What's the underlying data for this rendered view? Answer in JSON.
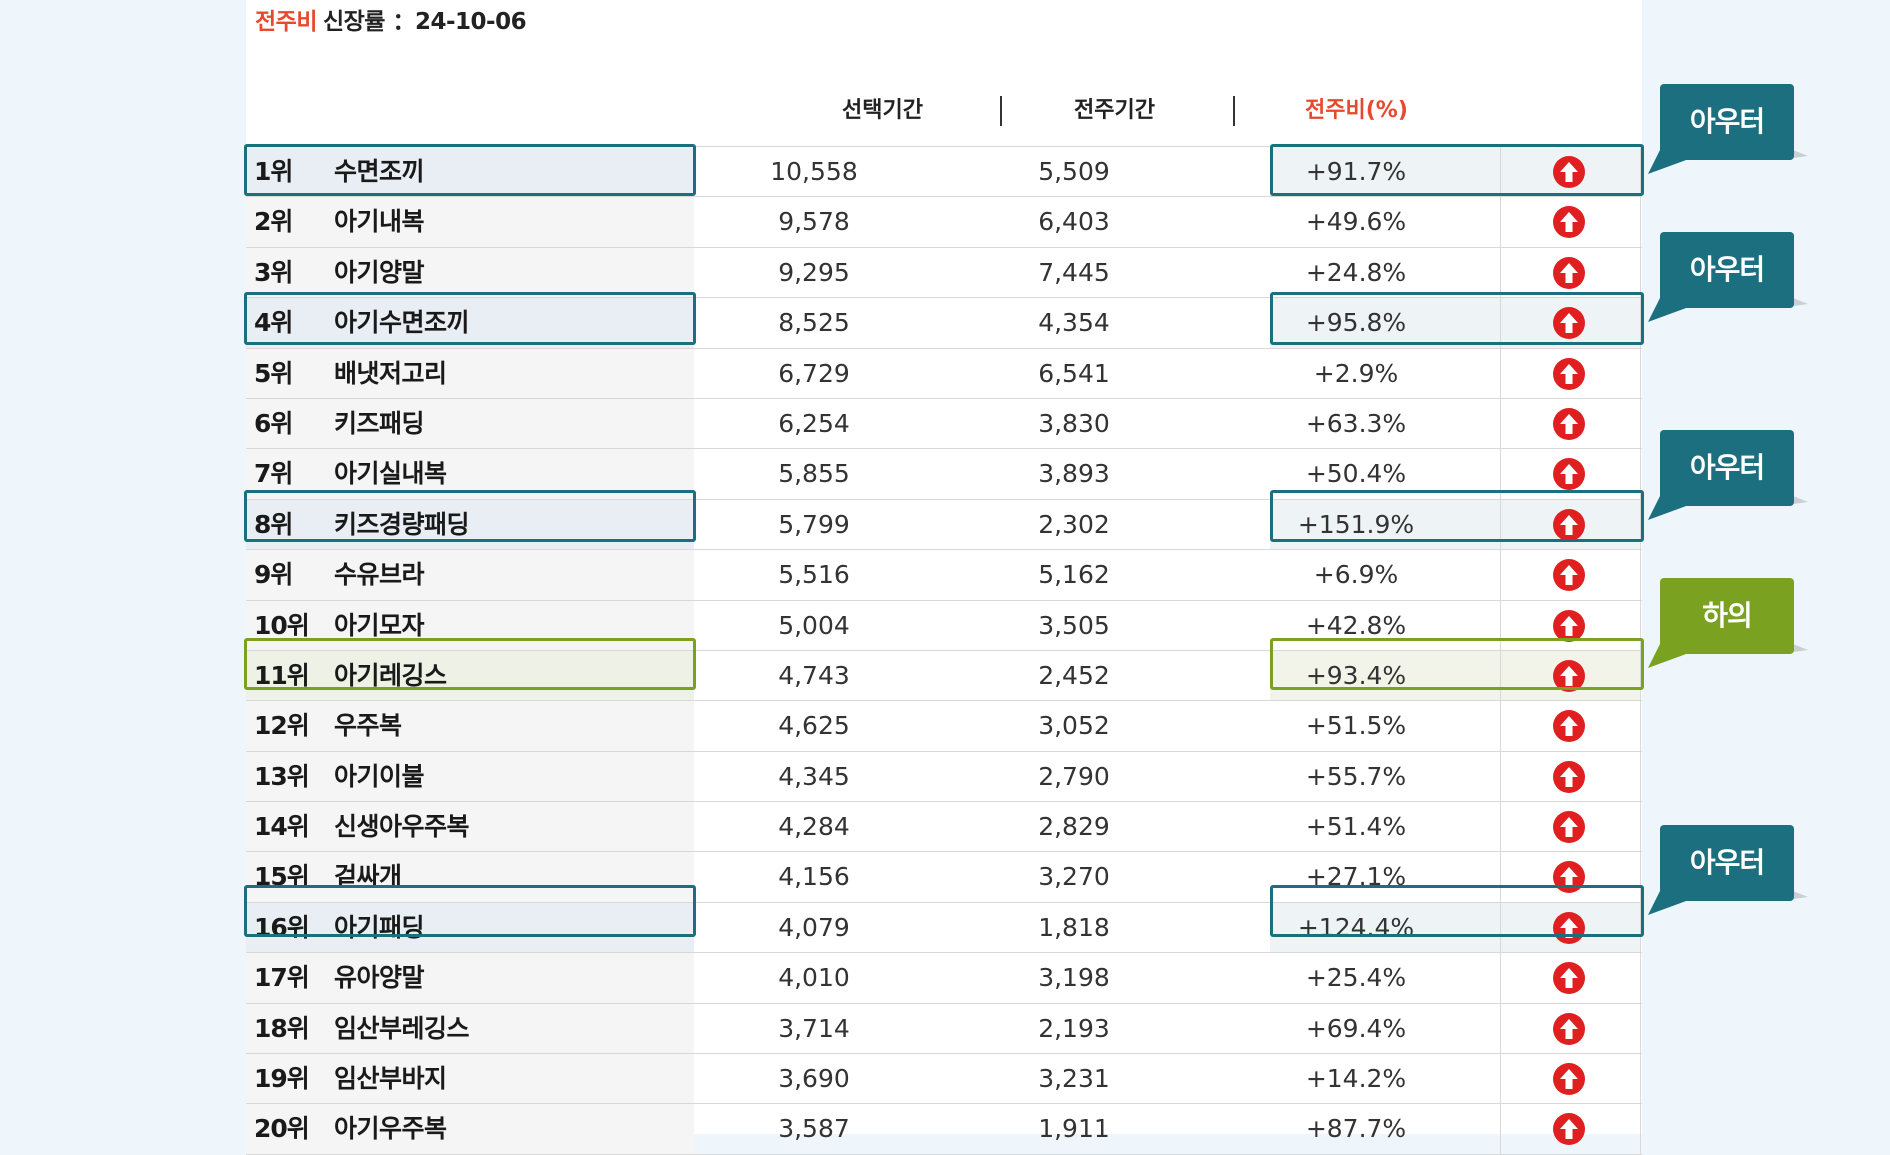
{
  "title": {
    "accent": "전주비",
    "rest": "신장률 ：24-10-06"
  },
  "headers": {
    "selected": "선택기간",
    "prev": "전주기간",
    "ratio": "전주비(%)",
    "sep": "|"
  },
  "colors": {
    "accent": "#e8492e",
    "teal": "#1b6f7f",
    "green": "#7aa11f",
    "arrow": "#e02020"
  },
  "rows": [
    {
      "rank": "1위",
      "name": "수면조끼",
      "selected": "10,558",
      "prev": "5,509",
      "ratio": "+91.7%",
      "highlight": "blue"
    },
    {
      "rank": "2위",
      "name": "아기내복",
      "selected": "9,578",
      "prev": "6,403",
      "ratio": "+49.6%",
      "highlight": ""
    },
    {
      "rank": "3위",
      "name": "아기양말",
      "selected": "9,295",
      "prev": "7,445",
      "ratio": "+24.8%",
      "highlight": ""
    },
    {
      "rank": "4위",
      "name": "아기수면조끼",
      "selected": "8,525",
      "prev": "4,354",
      "ratio": "+95.8%",
      "highlight": "blue"
    },
    {
      "rank": "5위",
      "name": "배냇저고리",
      "selected": "6,729",
      "prev": "6,541",
      "ratio": "+2.9%",
      "highlight": ""
    },
    {
      "rank": "6위",
      "name": "키즈패딩",
      "selected": "6,254",
      "prev": "3,830",
      "ratio": "+63.3%",
      "highlight": ""
    },
    {
      "rank": "7위",
      "name": "아기실내복",
      "selected": "5,855",
      "prev": "3,893",
      "ratio": "+50.4%",
      "highlight": ""
    },
    {
      "rank": "8위",
      "name": "키즈경량패딩",
      "selected": "5,799",
      "prev": "2,302",
      "ratio": "+151.9%",
      "highlight": "blue"
    },
    {
      "rank": "9위",
      "name": "수유브라",
      "selected": "5,516",
      "prev": "5,162",
      "ratio": "+6.9%",
      "highlight": ""
    },
    {
      "rank": "10위",
      "name": "아기모자",
      "selected": "5,004",
      "prev": "3,505",
      "ratio": "+42.8%",
      "highlight": ""
    },
    {
      "rank": "11위",
      "name": "아기레깅스",
      "selected": "4,743",
      "prev": "2,452",
      "ratio": "+93.4%",
      "highlight": "green"
    },
    {
      "rank": "12위",
      "name": "우주복",
      "selected": "4,625",
      "prev": "3,052",
      "ratio": "+51.5%",
      "highlight": ""
    },
    {
      "rank": "13위",
      "name": "아기이불",
      "selected": "4,345",
      "prev": "2,790",
      "ratio": "+55.7%",
      "highlight": ""
    },
    {
      "rank": "14위",
      "name": "신생아우주복",
      "selected": "4,284",
      "prev": "2,829",
      "ratio": "+51.4%",
      "highlight": ""
    },
    {
      "rank": "15위",
      "name": "겉싸개",
      "selected": "4,156",
      "prev": "3,270",
      "ratio": "+27.1%",
      "highlight": ""
    },
    {
      "rank": "16위",
      "name": "아기패딩",
      "selected": "4,079",
      "prev": "1,818",
      "ratio": "+124.4%",
      "highlight": "blue"
    },
    {
      "rank": "17위",
      "name": "유아양말",
      "selected": "4,010",
      "prev": "3,198",
      "ratio": "+25.4%",
      "highlight": ""
    },
    {
      "rank": "18위",
      "name": "임산부레깅스",
      "selected": "3,714",
      "prev": "2,193",
      "ratio": "+69.4%",
      "highlight": ""
    },
    {
      "rank": "19위",
      "name": "임산부바지",
      "selected": "3,690",
      "prev": "3,231",
      "ratio": "+14.2%",
      "highlight": ""
    },
    {
      "rank": "20위",
      "name": "아기우주복",
      "selected": "3,587",
      "prev": "1,911",
      "ratio": "+87.7%",
      "highlight": ""
    }
  ],
  "tags": [
    {
      "label": "아우터",
      "row": 0,
      "color": "teal"
    },
    {
      "label": "아우터",
      "row": 3,
      "color": "teal"
    },
    {
      "label": "아우터",
      "row": 7,
      "color": "teal"
    },
    {
      "label": "하의",
      "row": 10,
      "color": "green"
    },
    {
      "label": "아우터",
      "row": 15,
      "color": "teal"
    }
  ],
  "row_icon": "up-arrow-circle-icon"
}
